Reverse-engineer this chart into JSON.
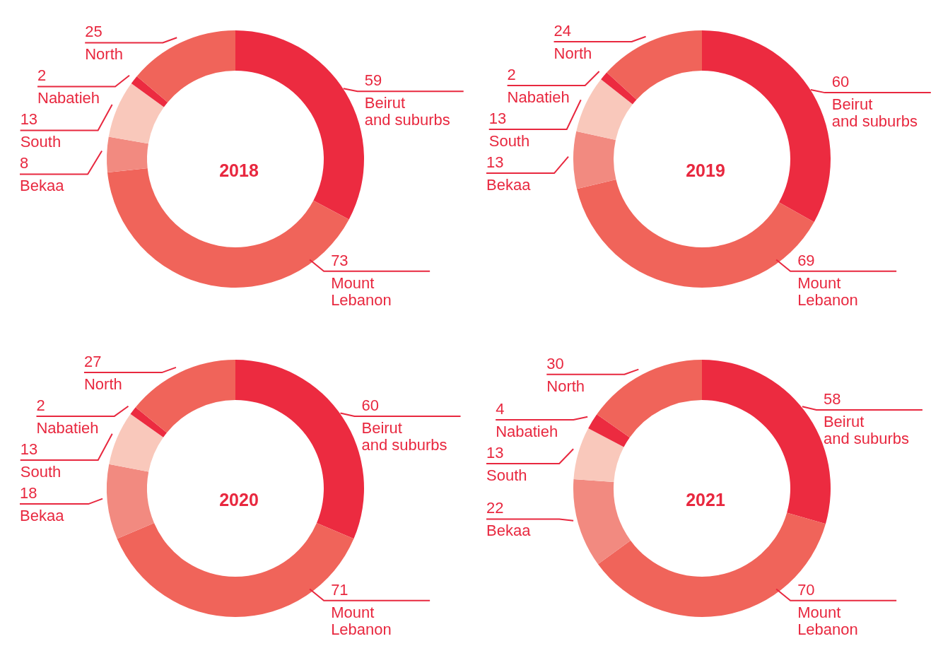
{
  "chart_data": [
    {
      "type": "donut",
      "title": "2018",
      "categories": [
        "Beirut and suburbs",
        "Mount Lebanon",
        "Bekaa",
        "South",
        "Nabatieh",
        "North"
      ],
      "values": [
        59,
        73,
        8,
        13,
        2,
        25
      ],
      "colors": [
        "#ec2b40",
        "#f0645a",
        "#f28a80",
        "#f9c8bb",
        "#ec2b40",
        "#f0645a"
      ],
      "data_labels": true
    },
    {
      "type": "donut",
      "title": "2019",
      "categories": [
        "Beirut and suburbs",
        "Mount Lebanon",
        "Bekaa",
        "South",
        "Nabatieh",
        "North"
      ],
      "values": [
        60,
        69,
        13,
        13,
        2,
        24
      ],
      "colors": [
        "#ec2b40",
        "#f0645a",
        "#f28a80",
        "#f9c8bb",
        "#ec2b40",
        "#f0645a"
      ],
      "data_labels": true
    },
    {
      "type": "donut",
      "title": "2020",
      "categories": [
        "Beirut and suburbs",
        "Mount Lebanon",
        "Bekaa",
        "South",
        "Nabatieh",
        "North"
      ],
      "values": [
        60,
        71,
        18,
        13,
        2,
        27
      ],
      "colors": [
        "#ec2b40",
        "#f0645a",
        "#f28a80",
        "#f9c8bb",
        "#ec2b40",
        "#f0645a"
      ],
      "data_labels": true
    },
    {
      "type": "donut",
      "title": "2021",
      "categories": [
        "Beirut and suburbs",
        "Mount Lebanon",
        "Bekaa",
        "South",
        "Nabatieh",
        "North"
      ],
      "values": [
        58,
        70,
        22,
        13,
        4,
        30
      ],
      "colors": [
        "#ec2b40",
        "#f0645a",
        "#f28a80",
        "#f9c8bb",
        "#ec2b40",
        "#f0645a"
      ],
      "data_labels": true
    }
  ]
}
